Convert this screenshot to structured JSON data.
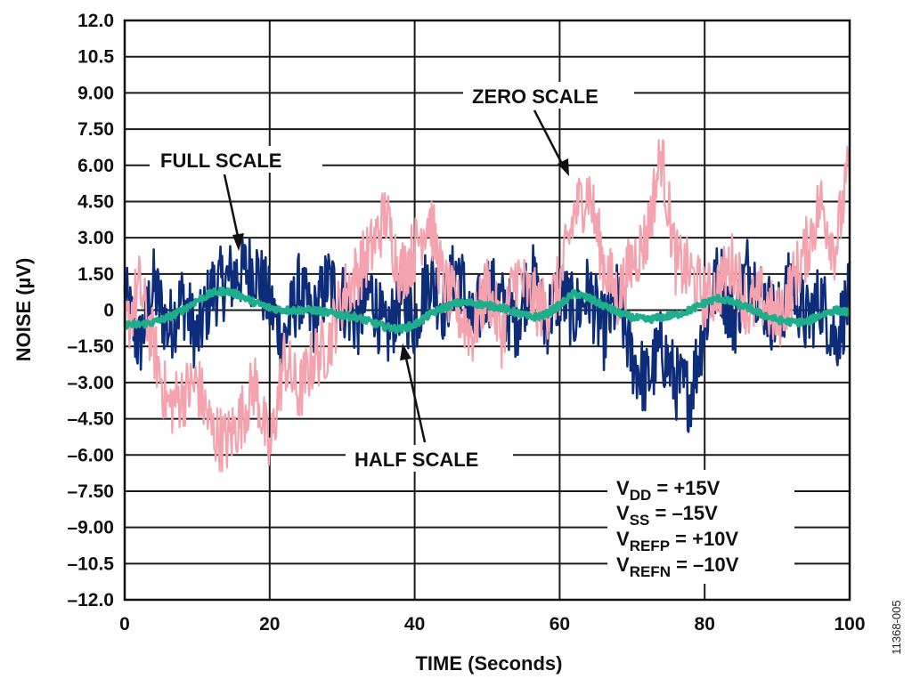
{
  "chart_data": {
    "type": "line",
    "xlabel": "TIME (Seconds)",
    "ylabel": "NOISE (µV)",
    "xlim": [
      0,
      100
    ],
    "ylim": [
      -12,
      12
    ],
    "x_ticks": [
      "0",
      "20",
      "40",
      "60",
      "80",
      "100"
    ],
    "y_ticks": [
      "12.0",
      "10.5",
      "9.00",
      "7.50",
      "6.00",
      "4.50",
      "3.00",
      "1.50",
      "0",
      "–1.50",
      "–3.00",
      "–4.50",
      "–6.00",
      "–7.50",
      "–9.00",
      "–10.5",
      "–12.0"
    ],
    "grid": true,
    "series": [
      {
        "name": "FULL SCALE",
        "color": "#0d2c7a",
        "x": [
          0,
          2,
          4,
          6,
          8,
          10,
          12,
          14,
          16,
          18,
          20,
          22,
          24,
          26,
          28,
          30,
          32,
          34,
          36,
          38,
          40,
          42,
          44,
          46,
          48,
          50,
          52,
          54,
          56,
          58,
          60,
          62,
          64,
          66,
          68,
          70,
          72,
          74,
          76,
          78,
          80,
          82,
          84,
          86,
          88,
          90,
          92,
          94,
          96,
          98,
          100
        ],
        "values": [
          0.5,
          -1.5,
          1.0,
          -0.8,
          0.5,
          -1.2,
          0.8,
          1.2,
          1.6,
          1.8,
          0.2,
          -1.2,
          0.8,
          -0.5,
          1.2,
          0.5,
          -0.5,
          0.8,
          -1.2,
          0.5,
          -0.5,
          1.5,
          0.2,
          1.8,
          -0.8,
          1.0,
          0.2,
          -0.5,
          1.5,
          -0.5,
          0.8,
          -0.2,
          0.8,
          -1.0,
          0.5,
          -2.0,
          -3.0,
          -1.5,
          -3.0,
          -3.5,
          -0.5,
          1.5,
          -0.5,
          1.8,
          0.5,
          -0.5,
          1.2,
          -0.5,
          0.5,
          -1.2,
          0.5
        ]
      },
      {
        "name": "HALF SCALE",
        "color": "#1fae8c",
        "x": [
          0,
          2,
          4,
          6,
          8,
          10,
          12,
          14,
          16,
          18,
          20,
          22,
          24,
          26,
          28,
          30,
          32,
          34,
          36,
          38,
          40,
          42,
          44,
          46,
          48,
          50,
          52,
          54,
          56,
          58,
          60,
          62,
          64,
          66,
          68,
          70,
          72,
          74,
          76,
          78,
          80,
          82,
          84,
          86,
          88,
          90,
          92,
          94,
          96,
          98,
          100
        ],
        "values": [
          -0.6,
          -0.6,
          -0.5,
          -0.3,
          0.0,
          0.4,
          0.7,
          0.8,
          0.6,
          0.3,
          0.1,
          0.0,
          0.0,
          0.0,
          -0.1,
          -0.2,
          -0.3,
          -0.5,
          -0.7,
          -0.8,
          -0.6,
          -0.2,
          0.1,
          0.3,
          0.3,
          0.2,
          0.1,
          -0.1,
          -0.3,
          -0.2,
          0.2,
          0.7,
          0.5,
          0.2,
          -0.1,
          -0.3,
          -0.4,
          -0.3,
          -0.2,
          0.0,
          0.3,
          0.5,
          0.3,
          0.1,
          -0.2,
          -0.4,
          -0.5,
          -0.5,
          -0.2,
          0.0,
          -0.1
        ]
      },
      {
        "name": "ZERO SCALE",
        "color": "#f4a2ad",
        "x": [
          0,
          2,
          4,
          6,
          8,
          10,
          12,
          14,
          16,
          18,
          20,
          22,
          24,
          26,
          28,
          30,
          32,
          34,
          36,
          38,
          40,
          42,
          44,
          46,
          48,
          50,
          52,
          54,
          56,
          58,
          60,
          62,
          64,
          66,
          68,
          70,
          72,
          74,
          76,
          78,
          80,
          82,
          84,
          86,
          88,
          90,
          92,
          94,
          96,
          98,
          100
        ],
        "values": [
          -1.0,
          1.0,
          -1.5,
          -4.0,
          -3.5,
          -3.0,
          -5.0,
          -5.5,
          -4.5,
          -3.0,
          -6.0,
          -2.0,
          -3.5,
          -2.0,
          -1.5,
          0.5,
          1.5,
          2.5,
          4.0,
          1.5,
          2.5,
          4.0,
          1.0,
          0.0,
          -1.0,
          1.0,
          -1.0,
          1.5,
          0.5,
          0.0,
          1.0,
          4.0,
          5.0,
          2.0,
          0.5,
          2.0,
          3.0,
          6.5,
          2.0,
          1.5,
          0.5,
          1.0,
          2.0,
          0.0,
          0.5,
          -0.5,
          1.0,
          2.5,
          4.5,
          2.5,
          6.0
        ]
      }
    ],
    "annotations": [
      {
        "text": "FULL SCALE",
        "target": "FULL SCALE"
      },
      {
        "text": "ZERO SCALE",
        "target": "ZERO SCALE"
      },
      {
        "text": "HALF SCALE",
        "target": "HALF SCALE"
      }
    ],
    "conditions": [
      {
        "main": "V",
        "sub": "DD",
        "rest": " = +15V"
      },
      {
        "main": "V",
        "sub": "SS",
        "rest": " = –15V"
      },
      {
        "main": "V",
        "sub": "REFP",
        "rest": " = +10V"
      },
      {
        "main": "V",
        "sub": "REFN",
        "rest": " = –10V"
      }
    ],
    "figure_id": "11368-005"
  }
}
